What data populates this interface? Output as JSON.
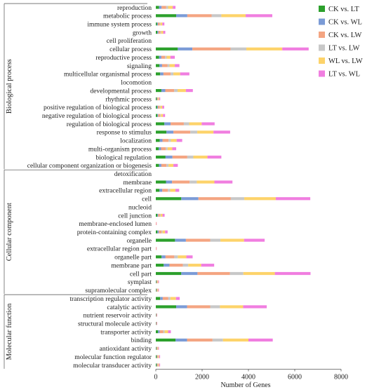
{
  "chart_data": {
    "type": "bar",
    "orientation": "horizontal",
    "stacked": true,
    "xlabel": "Number of Genes",
    "ylabel": "",
    "xlim": [
      0,
      8000
    ],
    "xticks": [
      0,
      2000,
      4000,
      6000,
      8000
    ],
    "grid": false,
    "legend_position": "top-right",
    "groups": [
      {
        "name": "Biological process",
        "start": 0,
        "end": 19
      },
      {
        "name": "Cellular component",
        "start": 20,
        "end": 34
      },
      {
        "name": "Molecular function",
        "start": 35,
        "end": 43
      }
    ],
    "categories": [
      "reproduction",
      "metabolic process",
      "immune system process",
      "growth",
      "cell proliferation",
      "cellular process",
      "reproductive process",
      "signaling",
      "multicellular organismal process",
      "locomotion",
      "developmental process",
      "rhythmic process",
      "positive regulation of biological process",
      "negative regulation of biological process",
      "regulation of biological process",
      "response to stimulus",
      "localization",
      "multi-organism process",
      "biological regulation",
      "cellular component organization or biogenesis",
      "detoxification",
      "membrane",
      "extracellular region",
      "cell",
      "nucleoid",
      "cell junction",
      "membrane-enclosed lumen",
      "protein-containing complex",
      "organelle",
      "extracellular region part",
      "organelle part",
      "membrane part",
      "cell part",
      "symplast",
      "supramolecular complex",
      "transcription regulator activity",
      "catalytic activity",
      "nutrient reservoir activity",
      "structural molecule activity",
      "transporter activity",
      "binding",
      "antioxidant activity",
      "molecular function regulator",
      "molecular transducer activity"
    ],
    "series": [
      {
        "name": "CK vs. LT",
        "color": "#2ca02c",
        "values": [
          140,
          880,
          50,
          60,
          0,
          950,
          140,
          160,
          190,
          0,
          240,
          30,
          50,
          60,
          370,
          460,
          170,
          130,
          420,
          140,
          0,
          440,
          160,
          1100,
          0,
          60,
          0,
          70,
          830,
          0,
          250,
          340,
          1100,
          20,
          20,
          190,
          880,
          10,
          10,
          100,
          850,
          20,
          30,
          30
        ]
      },
      {
        "name": "CK vs. WL",
        "color": "#7b9bd6",
        "values": [
          110,
          480,
          40,
          50,
          0,
          630,
          100,
          110,
          140,
          0,
          170,
          20,
          40,
          40,
          270,
          300,
          120,
          100,
          300,
          100,
          0,
          260,
          120,
          740,
          0,
          40,
          0,
          60,
          470,
          0,
          170,
          250,
          700,
          15,
          15,
          110,
          470,
          10,
          10,
          70,
          500,
          15,
          20,
          20
        ]
      },
      {
        "name": "CK vs. LW",
        "color": "#f4a582",
        "values": [
          200,
          1050,
          80,
          90,
          0,
          1650,
          160,
          230,
          310,
          0,
          380,
          40,
          80,
          90,
          570,
          730,
          260,
          200,
          640,
          220,
          0,
          760,
          240,
          1400,
          0,
          80,
          10,
          120,
          1050,
          10,
          380,
          580,
          1400,
          30,
          30,
          240,
          1000,
          10,
          10,
          150,
          1100,
          30,
          40,
          40
        ]
      },
      {
        "name": "LT vs. LW",
        "color": "#c8c8c8",
        "values": [
          80,
          420,
          30,
          30,
          0,
          680,
          70,
          90,
          120,
          0,
          150,
          20,
          30,
          30,
          230,
          300,
          100,
          80,
          260,
          90,
          0,
          310,
          100,
          580,
          0,
          30,
          0,
          40,
          440,
          0,
          150,
          230,
          580,
          10,
          10,
          90,
          420,
          5,
          5,
          60,
          450,
          10,
          15,
          15
        ]
      },
      {
        "name": "WL vs. LW",
        "color": "#fdd36a",
        "values": [
          200,
          1050,
          80,
          90,
          0,
          1550,
          160,
          230,
          290,
          0,
          360,
          40,
          80,
          90,
          540,
          700,
          250,
          200,
          610,
          210,
          0,
          760,
          230,
          1360,
          0,
          80,
          10,
          110,
          1020,
          10,
          370,
          560,
          1360,
          30,
          30,
          240,
          1000,
          10,
          10,
          150,
          1100,
          30,
          40,
          40
        ]
      },
      {
        "name": "LT vs. WL",
        "color": "#f07ee0",
        "values": [
          120,
          1150,
          90,
          90,
          0,
          1140,
          190,
          200,
          400,
          0,
          300,
          40,
          80,
          90,
          560,
          720,
          240,
          170,
          600,
          190,
          0,
          780,
          160,
          1490,
          0,
          90,
          10,
          110,
          890,
          10,
          270,
          560,
          1540,
          30,
          30,
          160,
          1020,
          10,
          10,
          120,
          1050,
          30,
          40,
          40
        ]
      }
    ]
  }
}
